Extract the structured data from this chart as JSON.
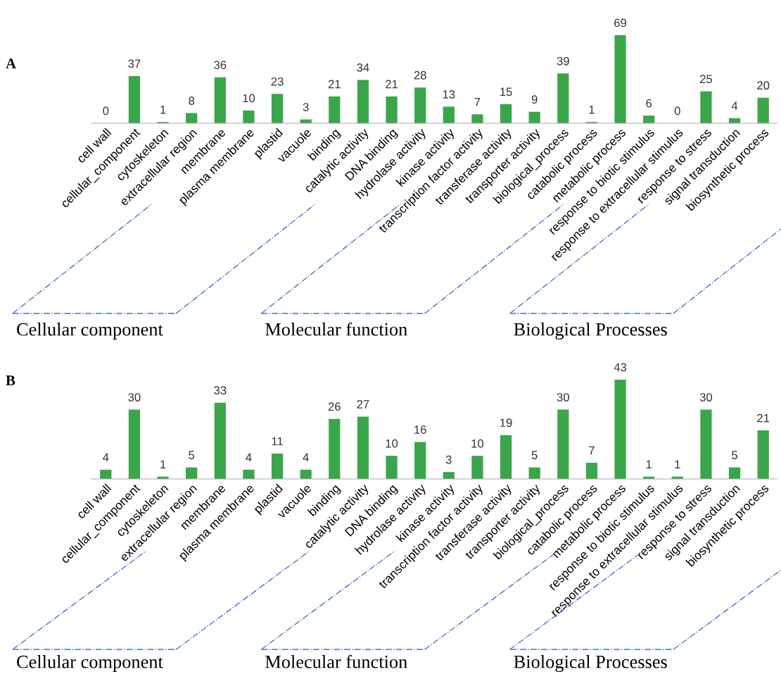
{
  "chart_data": [
    {
      "type": "bar",
      "title": "A",
      "color": "#3aa64a",
      "data_labels": true,
      "categories": [
        "cell wall",
        "cellular_component",
        "cytoskeleton",
        "extracellular region",
        "membrane",
        "plasma membrane",
        "plastid",
        "vacuole",
        "binding",
        "catalytic activity",
        "DNA binding",
        "hydrolase activity",
        "kinase activity",
        "transcription factor activity",
        "transferase activity",
        "transporter activity",
        "biological_process",
        "catabolic process",
        "metabolic process",
        "response to biotic stimulus",
        "response to extracellular stimulus",
        "response to stress",
        "signal transduction",
        "biosynthetic process"
      ],
      "values": [
        0,
        37,
        1,
        8,
        36,
        10,
        23,
        3,
        21,
        34,
        21,
        28,
        13,
        7,
        15,
        9,
        39,
        1,
        69,
        6,
        0,
        25,
        4,
        20
      ],
      "annotations": [
        "Cellular component",
        "Molecular function",
        "Biological Processes"
      ]
    },
    {
      "type": "bar",
      "title": "B",
      "color": "#3aa64a",
      "data_labels": true,
      "categories": [
        "cell wall",
        "cellular_component",
        "cytoskeleton",
        "extracellular region",
        "membrane",
        "plasma membrane",
        "plastid",
        "vacuole",
        "binding",
        "catalytic activity",
        "DNA binding",
        "hydrolase activity",
        "kinase activity",
        "transcription factor activity",
        "transferase activity",
        "transporter activity",
        "biological_process",
        "catabolic process",
        "metabolic process",
        "response to biotic stimulus",
        "response to extracellular stimulus",
        "response to stress",
        "signal transduction",
        "biosynthetic process"
      ],
      "values": [
        4,
        30,
        1,
        5,
        33,
        4,
        11,
        4,
        26,
        27,
        10,
        16,
        3,
        10,
        19,
        5,
        30,
        7,
        43,
        1,
        1,
        30,
        5,
        21
      ],
      "annotations": [
        "Cellular component",
        "Molecular function",
        "Biological Processes"
      ]
    }
  ]
}
